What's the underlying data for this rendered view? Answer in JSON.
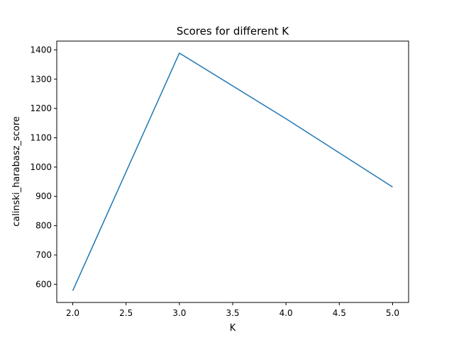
{
  "chart_data": {
    "type": "line",
    "title": "Scores for different K",
    "xlabel": "K",
    "ylabel": "calinski_harabasz_score",
    "x": [
      2.0,
      3.0,
      4.0,
      5.0
    ],
    "series": [
      {
        "values": [
          578,
          1389,
          1165,
          932
        ],
        "color": "#1f77b4"
      }
    ],
    "xlim": [
      1.85,
      5.15
    ],
    "ylim": [
      538,
      1430
    ],
    "xticks": [
      "2.0",
      "2.5",
      "3.0",
      "3.5",
      "4.0",
      "4.5",
      "5.0"
    ],
    "yticks": [
      "600",
      "700",
      "800",
      "900",
      "1000",
      "1100",
      "1200",
      "1300",
      "1400"
    ],
    "grid": false,
    "legend": "none"
  }
}
